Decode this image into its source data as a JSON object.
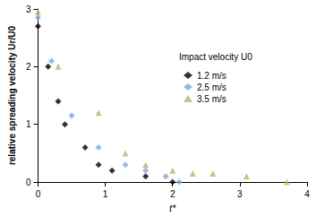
{
  "chart_data": {
    "type": "scatter",
    "x_label": "t*",
    "y_label": "relative spreading velocity Ur/U0",
    "annotation": "Impact velocity U0",
    "xlim": [
      0,
      4
    ],
    "xticks": [
      0,
      1,
      2,
      3,
      4
    ],
    "ylim": [
      0,
      3
    ],
    "yticks": [
      0,
      1,
      2,
      3
    ],
    "grid": false,
    "series": [
      {
        "name": "1.2 m/s",
        "color": "#000000",
        "marker": "diamond",
        "x": [
          0,
          0.15,
          0.3,
          0.4,
          0.7,
          0.9,
          1.1,
          1.6,
          2.0
        ],
        "values": [
          2.7,
          2.0,
          1.4,
          1.0,
          0.6,
          0.3,
          0.2,
          0.1,
          0.0
        ]
      },
      {
        "name": "2.5 m/s",
        "color": "#7ea6d8",
        "marker": "diamond",
        "x": [
          0,
          0.2,
          0.5,
          0.9,
          1.3,
          1.6,
          1.9,
          2.1
        ],
        "values": [
          2.85,
          2.1,
          1.15,
          0.6,
          0.3,
          0.2,
          0.1,
          0.0
        ]
      },
      {
        "name": "3.5 m/s",
        "color": "#b5b86a",
        "marker": "triangle",
        "x": [
          0,
          0.3,
          0.9,
          1.3,
          1.6,
          2.0,
          2.3,
          2.6,
          3.1,
          3.7
        ],
        "values": [
          2.95,
          2.0,
          1.2,
          0.5,
          0.3,
          0.2,
          0.15,
          0.15,
          0.1,
          0.0
        ]
      }
    ]
  }
}
